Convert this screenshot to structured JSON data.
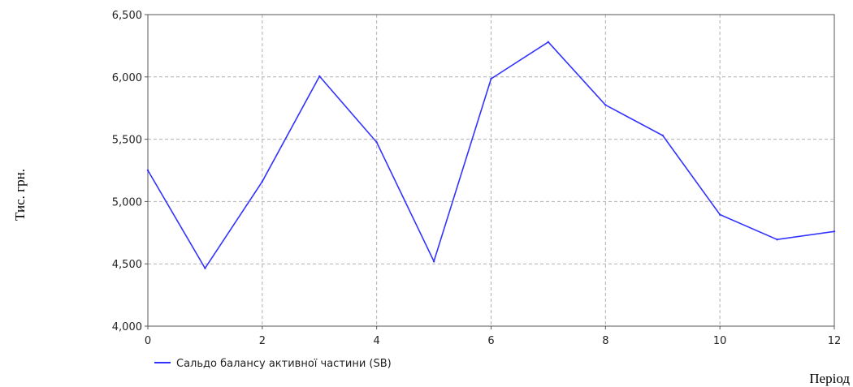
{
  "chart_data": {
    "type": "line",
    "title": "",
    "xlabel": "Період",
    "ylabel": "Тис. грн.",
    "xlim": [
      0,
      12
    ],
    "ylim": [
      4000,
      6500
    ],
    "x_ticks": [
      0,
      2,
      4,
      6,
      8,
      10,
      12
    ],
    "x_tick_labels": [
      "0",
      "2",
      "4",
      "6",
      "8",
      "10",
      "12"
    ],
    "y_ticks": [
      4000,
      4500,
      5000,
      5500,
      6000,
      6500
    ],
    "y_tick_labels": [
      "4,000",
      "4,500",
      "5,000",
      "5,500",
      "6,000",
      "6,500"
    ],
    "grid": true,
    "legend_position": "bottom-left",
    "series": [
      {
        "name": "Сальдо балансу активної частини (SB)",
        "color": "#3333ff",
        "x": [
          0,
          1,
          2,
          3,
          4,
          5,
          6,
          7,
          8,
          9,
          10,
          11,
          12
        ],
        "values": [
          5250,
          4465,
          5160,
          6005,
          5475,
          4520,
          5985,
          6280,
          5775,
          5530,
          4895,
          4695,
          4760
        ]
      }
    ]
  }
}
